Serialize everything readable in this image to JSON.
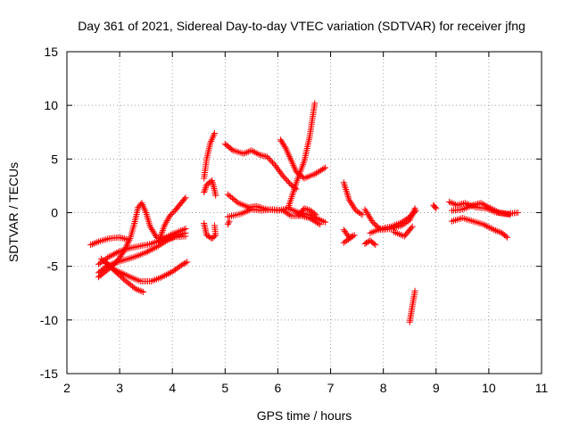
{
  "chart_data": {
    "type": "scatter",
    "title": "Day 361 of 2021, Sidereal Day-to-day VTEC variation (SDTVAR) for receiver jfng",
    "xlabel": "GPS time / hours",
    "ylabel": "SDTVAR / TECUs",
    "xlim": [
      2,
      11
    ],
    "ylim": [
      -15,
      15
    ],
    "xticks": [
      2,
      3,
      4,
      5,
      6,
      7,
      8,
      9,
      10,
      11
    ],
    "yticks": [
      -15,
      -10,
      -5,
      0,
      5,
      10,
      15
    ],
    "grid": true,
    "marker": "plus",
    "color": "#ff0000",
    "tracks": [
      [
        [
          2.45,
          -3.0
        ],
        [
          2.6,
          -2.7
        ],
        [
          2.8,
          -2.4
        ],
        [
          3.0,
          -2.3
        ],
        [
          3.15,
          -2.5
        ]
      ],
      [
        [
          2.6,
          -4.8
        ],
        [
          2.8,
          -4.1
        ],
        [
          3.0,
          -3.6
        ],
        [
          3.2,
          -3.3
        ],
        [
          3.4,
          -3.1
        ],
        [
          3.6,
          -2.9
        ],
        [
          3.8,
          -2.5
        ],
        [
          4.0,
          -2.0
        ],
        [
          4.25,
          -1.5
        ]
      ],
      [
        [
          2.6,
          -5.6
        ],
        [
          2.75,
          -5.0
        ],
        [
          2.9,
          -4.7
        ],
        [
          3.1,
          -4.4
        ],
        [
          3.3,
          -4.1
        ],
        [
          3.5,
          -3.7
        ],
        [
          3.7,
          -3.2
        ],
        [
          3.9,
          -2.6
        ],
        [
          4.1,
          -2.1
        ],
        [
          4.25,
          -1.9
        ]
      ],
      [
        [
          2.65,
          -4.3
        ],
        [
          2.9,
          -5.3
        ],
        [
          3.2,
          -6.0
        ],
        [
          3.4,
          -6.4
        ],
        [
          3.6,
          -6.4
        ],
        [
          3.8,
          -6.0
        ],
        [
          4.0,
          -5.5
        ],
        [
          4.2,
          -4.8
        ],
        [
          4.28,
          -4.6
        ]
      ],
      [
        [
          2.75,
          -4.7
        ],
        [
          2.9,
          -5.4
        ],
        [
          3.1,
          -6.3
        ],
        [
          3.3,
          -7.1
        ],
        [
          3.45,
          -7.4
        ]
      ],
      [
        [
          2.6,
          -6.0
        ],
        [
          2.75,
          -5.4
        ],
        [
          2.9,
          -4.8
        ],
        [
          3.0,
          -4.2
        ],
        [
          3.1,
          -3.4
        ],
        [
          3.2,
          -2.4
        ],
        [
          3.28,
          -1.0
        ],
        [
          3.35,
          0.5
        ],
        [
          3.42,
          0.9
        ],
        [
          3.5,
          0.0
        ],
        [
          3.58,
          -1.3
        ],
        [
          3.7,
          -2.3
        ],
        [
          3.85,
          -2.4
        ],
        [
          4.0,
          -2.3
        ],
        [
          4.25,
          -2.2
        ]
      ],
      [
        [
          3.75,
          -2.6
        ],
        [
          3.85,
          -1.2
        ],
        [
          3.95,
          -0.3
        ],
        [
          4.05,
          0.2
        ],
        [
          4.15,
          0.8
        ],
        [
          4.25,
          1.4
        ]
      ],
      [
        [
          4.6,
          1.9
        ],
        [
          4.65,
          2.6
        ],
        [
          4.75,
          3.0
        ],
        [
          4.8,
          2.1
        ],
        [
          4.82,
          1.6
        ]
      ],
      [
        [
          4.6,
          3.2
        ],
        [
          4.65,
          5.0
        ],
        [
          4.72,
          6.5
        ],
        [
          4.8,
          7.4
        ]
      ],
      [
        [
          4.6,
          -1.0
        ],
        [
          4.65,
          -2.1
        ],
        [
          4.75,
          -2.4
        ],
        [
          4.82,
          -2.1
        ],
        [
          4.8,
          -1.2
        ]
      ],
      [
        [
          5.0,
          6.4
        ],
        [
          5.15,
          5.8
        ],
        [
          5.35,
          5.5
        ],
        [
          5.5,
          5.8
        ],
        [
          5.65,
          5.4
        ],
        [
          5.8,
          5.2
        ],
        [
          5.95,
          4.4
        ],
        [
          6.1,
          3.4
        ],
        [
          6.25,
          2.6
        ],
        [
          6.35,
          2.2
        ]
      ],
      [
        [
          5.05,
          1.7
        ],
        [
          5.25,
          0.9
        ],
        [
          5.45,
          0.5
        ],
        [
          5.6,
          0.6
        ],
        [
          5.8,
          0.3
        ],
        [
          6.0,
          0.2
        ],
        [
          6.2,
          0.4
        ],
        [
          6.4,
          0.0
        ],
        [
          6.6,
          -0.2
        ],
        [
          6.9,
          -0.9
        ]
      ],
      [
        [
          5.05,
          -0.4
        ],
        [
          5.3,
          -0.1
        ],
        [
          5.5,
          0.3
        ],
        [
          5.7,
          0.2
        ],
        [
          5.9,
          0.3
        ],
        [
          6.1,
          0.2
        ],
        [
          6.25,
          -0.3
        ],
        [
          6.45,
          -0.3
        ],
        [
          6.6,
          -0.5
        ],
        [
          6.8,
          -1.1
        ]
      ],
      [
        [
          5.05,
          -1.1
        ],
        [
          5.08,
          -0.8
        ]
      ],
      [
        [
          6.05,
          6.8
        ],
        [
          6.15,
          6.0
        ],
        [
          6.25,
          4.9
        ],
        [
          6.35,
          3.8
        ],
        [
          6.5,
          3.2
        ],
        [
          6.7,
          3.6
        ],
        [
          6.9,
          4.2
        ]
      ],
      [
        [
          6.2,
          0.5
        ],
        [
          6.35,
          2.8
        ],
        [
          6.5,
          4.8
        ],
        [
          6.6,
          7.0
        ],
        [
          6.7,
          10.2
        ]
      ],
      [
        [
          6.4,
          -0.2
        ],
        [
          6.5,
          0.4
        ],
        [
          6.62,
          0.2
        ],
        [
          6.72,
          -0.2
        ]
      ],
      [
        [
          7.25,
          2.8
        ],
        [
          7.35,
          1.2
        ],
        [
          7.48,
          0.2
        ],
        [
          7.6,
          -0.2
        ]
      ],
      [
        [
          7.25,
          -1.6
        ],
        [
          7.35,
          -2.3
        ],
        [
          7.45,
          -2.1
        ],
        [
          7.25,
          -2.8
        ]
      ],
      [
        [
          7.65,
          0.3
        ],
        [
          7.8,
          -0.9
        ],
        [
          7.95,
          -1.6
        ],
        [
          8.15,
          -1.5
        ],
        [
          8.35,
          -1.2
        ],
        [
          8.5,
          -0.7
        ],
        [
          8.6,
          0.4
        ]
      ],
      [
        [
          7.75,
          -1.9
        ],
        [
          7.95,
          -1.5
        ],
        [
          8.15,
          -1.3
        ],
        [
          8.35,
          -0.9
        ],
        [
          8.5,
          -0.4
        ],
        [
          8.62,
          0.2
        ]
      ],
      [
        [
          7.65,
          -2.9
        ],
        [
          7.75,
          -2.6
        ],
        [
          7.85,
          -3.0
        ]
      ],
      [
        [
          8.2,
          -1.8
        ],
        [
          8.4,
          -2.2
        ],
        [
          8.55,
          -1.3
        ]
      ],
      [
        [
          8.5,
          -10.2
        ],
        [
          8.55,
          -8.7
        ],
        [
          8.6,
          -7.3
        ]
      ],
      [
        [
          8.95,
          0.7
        ],
        [
          9.0,
          0.4
        ]
      ],
      [
        [
          9.25,
          1.0
        ],
        [
          9.4,
          0.7
        ],
        [
          9.55,
          0.9
        ],
        [
          9.75,
          0.5
        ],
        [
          9.95,
          0.4
        ],
        [
          10.15,
          0.0
        ],
        [
          10.35,
          -0.1
        ],
        [
          10.55,
          0.0
        ]
      ],
      [
        [
          9.3,
          0.2
        ],
        [
          9.5,
          0.3
        ],
        [
          9.7,
          0.7
        ],
        [
          9.85,
          0.9
        ],
        [
          10.0,
          0.5
        ],
        [
          10.2,
          0.0
        ],
        [
          10.4,
          -0.2
        ]
      ],
      [
        [
          9.3,
          -0.8
        ],
        [
          9.5,
          -0.5
        ],
        [
          9.7,
          -0.8
        ],
        [
          9.9,
          -1.1
        ],
        [
          10.1,
          -1.6
        ],
        [
          10.25,
          -1.9
        ],
        [
          10.35,
          -2.3
        ]
      ]
    ]
  }
}
